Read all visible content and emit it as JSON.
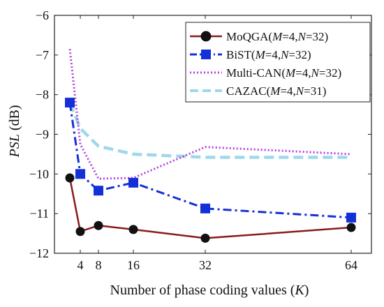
{
  "chart_data": {
    "type": "line",
    "x": [
      2,
      4,
      8,
      16,
      32,
      64
    ],
    "x_ticks": [
      4,
      8,
      16,
      32,
      64
    ],
    "y_ticks": [
      -6,
      -7,
      -8,
      -9,
      -10,
      -11,
      -12
    ],
    "xlim": [
      0,
      68
    ],
    "ylim": [
      -12,
      -6
    ],
    "scale": "log2-x",
    "xlabel": {
      "pre": "Number of phase coding values (",
      "var": "K",
      "post": ")"
    },
    "ylabel": {
      "var": "PSL",
      "post": " (dB)"
    },
    "legend_position": "top-right",
    "grid": false,
    "series": [
      {
        "key": "moqga",
        "label_name": "MoQGA(",
        "M": "M",
        "mval": "=4,",
        "N": "N",
        "nval": "=32)",
        "color": "#8b1a1a",
        "marker": "circle",
        "dash": "solid",
        "values": [
          -10.1,
          -11.45,
          -11.3,
          -11.4,
          -11.62,
          -11.35
        ]
      },
      {
        "key": "bist",
        "label_name": "BiST(",
        "M": "M",
        "mval": "=4,",
        "N": "N",
        "nval": "=32)",
        "color": "#1430d8",
        "marker": "square",
        "dash": "dashdot",
        "values": [
          -8.2,
          -10.0,
          -10.42,
          -10.22,
          -10.87,
          -11.1
        ]
      },
      {
        "key": "mcan",
        "label_name": "Multi-CAN(",
        "M": "M",
        "mval": "=4,",
        "N": "N",
        "nval": "=32)",
        "color": "#b443e0",
        "marker": "none",
        "dash": "dotted",
        "values": [
          -6.85,
          -9.25,
          -10.12,
          -10.1,
          -9.32,
          -9.5
        ]
      },
      {
        "key": "cazac",
        "label_name": "CAZAC(",
        "M": "M",
        "mval": "=4,",
        "N": "N",
        "nval": "=31)",
        "color": "#9fd8ea",
        "marker": "none",
        "dash": "dashed",
        "values": [
          -8.2,
          -8.85,
          -9.3,
          -9.5,
          -9.58,
          -9.58
        ]
      }
    ]
  }
}
